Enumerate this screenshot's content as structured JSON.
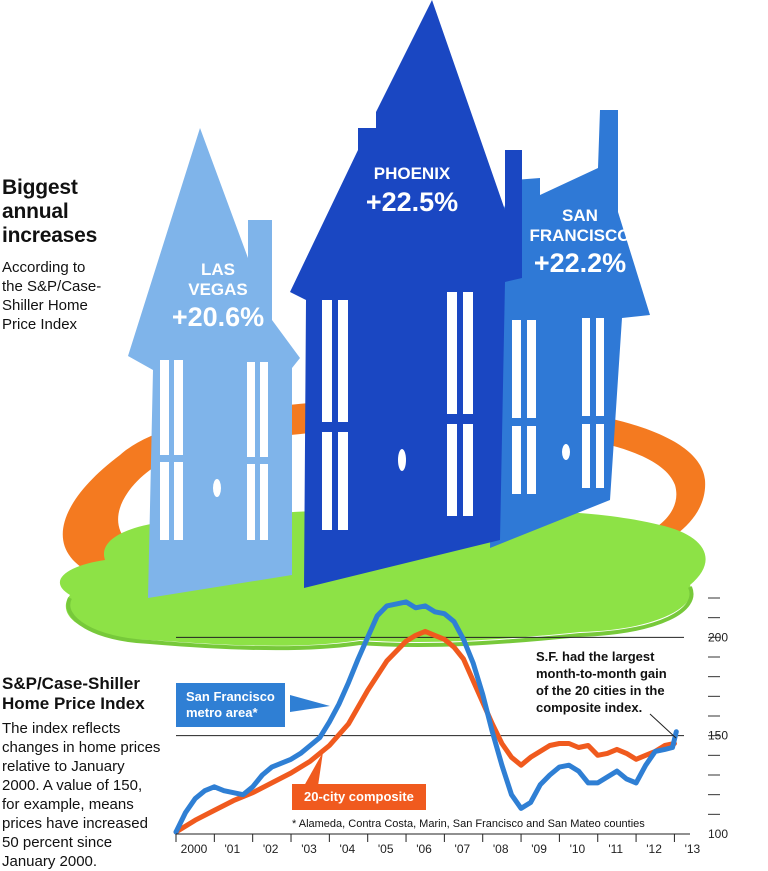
{
  "headline": {
    "title_lines": [
      "Biggest",
      "annual",
      "increases"
    ],
    "source_lines": [
      "According to",
      "the S&P/Case-",
      "Shiller Home",
      "Price Index"
    ]
  },
  "houses": [
    {
      "city_lines": [
        "LAS",
        "VEGAS"
      ],
      "change": "+20.6%",
      "color": "#7fb4ea"
    },
    {
      "city_lines": [
        "PHOENIX"
      ],
      "change": "+22.5%",
      "color": "#1a47c2"
    },
    {
      "city_lines": [
        "SAN",
        "FRANCISCO"
      ],
      "change": "+22.2%",
      "color": "#2f79d6"
    }
  ],
  "colors": {
    "ring": "#f47a20",
    "grass": "#8de246",
    "sf_line": "#2f7fd4",
    "composite_line": "#f05a1e"
  },
  "index_panel": {
    "title_lines": [
      "S&P/Case-Shiller",
      "Home Price Index"
    ],
    "body_lines": [
      "The index reflects",
      "changes in home prices",
      "relative to January",
      "2000. A value of 150,",
      "for example, means",
      "prices have increased",
      "50 percent since",
      "January 2000."
    ]
  },
  "chart_data": {
    "type": "line",
    "xlim": [
      2000.0,
      2013.25
    ],
    "ylim": [
      100,
      220
    ],
    "x_tick_labels": [
      "2000",
      "'01",
      "'02",
      "'03",
      "'04",
      "'05",
      "'06",
      "'07",
      "'08",
      "'09",
      "'10",
      "'11",
      "'12",
      "'13"
    ],
    "y_tick_labels": [
      "100",
      "150",
      "200"
    ],
    "y_ticks_labeled": [
      100,
      150,
      200
    ],
    "reference_lines": [
      150,
      200
    ],
    "series": [
      {
        "name": "San Francisco metro area*",
        "color": "#2f7fd4",
        "points": [
          [
            2000.0,
            101
          ],
          [
            2000.25,
            111
          ],
          [
            2000.5,
            118
          ],
          [
            2000.75,
            122
          ],
          [
            2001.0,
            124
          ],
          [
            2001.25,
            122
          ],
          [
            2001.5,
            121
          ],
          [
            2001.75,
            120
          ],
          [
            2002.0,
            124
          ],
          [
            2002.25,
            130
          ],
          [
            2002.5,
            134
          ],
          [
            2002.75,
            136
          ],
          [
            2003.0,
            138
          ],
          [
            2003.25,
            141
          ],
          [
            2003.5,
            145
          ],
          [
            2003.75,
            149
          ],
          [
            2004.0,
            157
          ],
          [
            2004.25,
            166
          ],
          [
            2004.5,
            177
          ],
          [
            2004.75,
            189
          ],
          [
            2005.0,
            200
          ],
          [
            2005.25,
            211
          ],
          [
            2005.5,
            216
          ],
          [
            2005.75,
            217
          ],
          [
            2006.0,
            218
          ],
          [
            2006.25,
            215
          ],
          [
            2006.5,
            216
          ],
          [
            2006.75,
            213
          ],
          [
            2007.0,
            212
          ],
          [
            2007.25,
            208
          ],
          [
            2007.5,
            199
          ],
          [
            2007.75,
            187
          ],
          [
            2008.0,
            171
          ],
          [
            2008.25,
            152
          ],
          [
            2008.5,
            135
          ],
          [
            2008.75,
            120
          ],
          [
            2009.0,
            113
          ],
          [
            2009.25,
            116
          ],
          [
            2009.5,
            125
          ],
          [
            2009.75,
            130
          ],
          [
            2010.0,
            134
          ],
          [
            2010.25,
            135
          ],
          [
            2010.5,
            132
          ],
          [
            2010.75,
            126
          ],
          [
            2011.0,
            126
          ],
          [
            2011.25,
            129
          ],
          [
            2011.5,
            132
          ],
          [
            2011.75,
            128
          ],
          [
            2012.0,
            126
          ],
          [
            2012.25,
            135
          ],
          [
            2012.5,
            142
          ],
          [
            2012.75,
            143
          ],
          [
            2012.95,
            144
          ],
          [
            2013.05,
            152
          ]
        ]
      },
      {
        "name": "20-city composite",
        "color": "#f05a1e",
        "points": [
          [
            2000.0,
            101
          ],
          [
            2000.5,
            107
          ],
          [
            2001.0,
            112
          ],
          [
            2001.5,
            117
          ],
          [
            2002.0,
            121
          ],
          [
            2002.5,
            126
          ],
          [
            2003.0,
            131
          ],
          [
            2003.5,
            137
          ],
          [
            2004.0,
            145
          ],
          [
            2004.5,
            156
          ],
          [
            2005.0,
            173
          ],
          [
            2005.5,
            188
          ],
          [
            2006.0,
            198
          ],
          [
            2006.25,
            201
          ],
          [
            2006.5,
            203
          ],
          [
            2006.75,
            201
          ],
          [
            2007.0,
            199
          ],
          [
            2007.25,
            195
          ],
          [
            2007.5,
            189
          ],
          [
            2007.75,
            178
          ],
          [
            2008.0,
            167
          ],
          [
            2008.25,
            156
          ],
          [
            2008.5,
            146
          ],
          [
            2008.75,
            139
          ],
          [
            2009.0,
            135
          ],
          [
            2009.25,
            139
          ],
          [
            2009.5,
            142
          ],
          [
            2009.75,
            145
          ],
          [
            2010.0,
            146
          ],
          [
            2010.25,
            146
          ],
          [
            2010.5,
            144
          ],
          [
            2010.75,
            145
          ],
          [
            2011.0,
            140
          ],
          [
            2011.25,
            141
          ],
          [
            2011.5,
            143
          ],
          [
            2011.75,
            141
          ],
          [
            2012.0,
            138
          ],
          [
            2012.25,
            140
          ],
          [
            2012.5,
            142
          ],
          [
            2012.75,
            145
          ],
          [
            2013.0,
            146
          ]
        ]
      }
    ],
    "annotations": [
      "S.F. had the largest month-to-month gain of the 20 cities in the composite index."
    ],
    "footnote": "* Alameda, Contra Costa, Marin, San Francisco and San Mateo counties"
  },
  "callouts": {
    "sf_label_lines": [
      "San Francisco",
      "metro area*"
    ],
    "composite_label": "20-city composite",
    "annotation_lines": [
      "S.F. had the largest",
      "month-to-month gain",
      "of the 20 cities in the",
      "composite index."
    ]
  }
}
